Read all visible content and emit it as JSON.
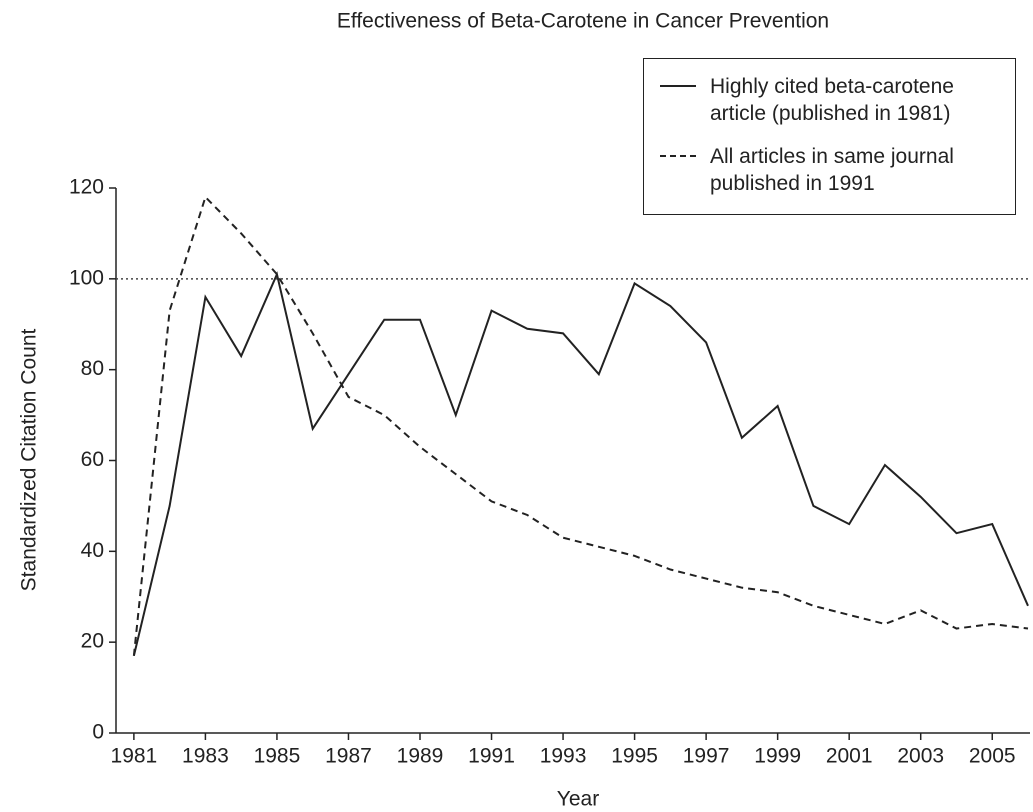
{
  "chart_data": {
    "type": "line",
    "title": "Effectiveness of Beta-Carotene in Cancer Prevention",
    "xlabel": "Year",
    "ylabel": "Standardized Citation Count",
    "x": [
      1981,
      1982,
      1983,
      1984,
      1985,
      1986,
      1987,
      1988,
      1989,
      1990,
      1991,
      1992,
      1993,
      1994,
      1995,
      1996,
      1997,
      1998,
      1999,
      2000,
      2001,
      2002,
      2003,
      2004,
      2005,
      2006
    ],
    "series": [
      {
        "name": "Highly cited beta-carotene article (published in 1981)",
        "color": "#222222",
        "dash": "solid",
        "values": [
          17,
          50,
          96,
          83,
          101,
          67,
          79,
          91,
          91,
          70,
          93,
          89,
          88,
          79,
          99,
          94,
          86,
          65,
          72,
          50,
          46,
          59,
          52,
          44,
          46,
          28
        ]
      },
      {
        "name": "All articles in same journal published in 1991",
        "color": "#222222",
        "dash": "dashed",
        "values": [
          17,
          93,
          118,
          110,
          101,
          88,
          74,
          70,
          63,
          57,
          51,
          48,
          43,
          41,
          39,
          36,
          34,
          32,
          31,
          28,
          26,
          24,
          27,
          23,
          24,
          23
        ]
      }
    ],
    "reference_line": {
      "y": 100,
      "style": "dotted"
    },
    "xlim": [
      1980.5,
      2006
    ],
    "xticks": [
      1981,
      1983,
      1985,
      1987,
      1989,
      1991,
      1993,
      1995,
      1997,
      1999,
      2001,
      2003,
      2005
    ],
    "ylim": [
      0,
      120
    ],
    "yticks": [
      0,
      20,
      40,
      60,
      80,
      100,
      120
    ],
    "legend": "upper right",
    "grid": false
  }
}
